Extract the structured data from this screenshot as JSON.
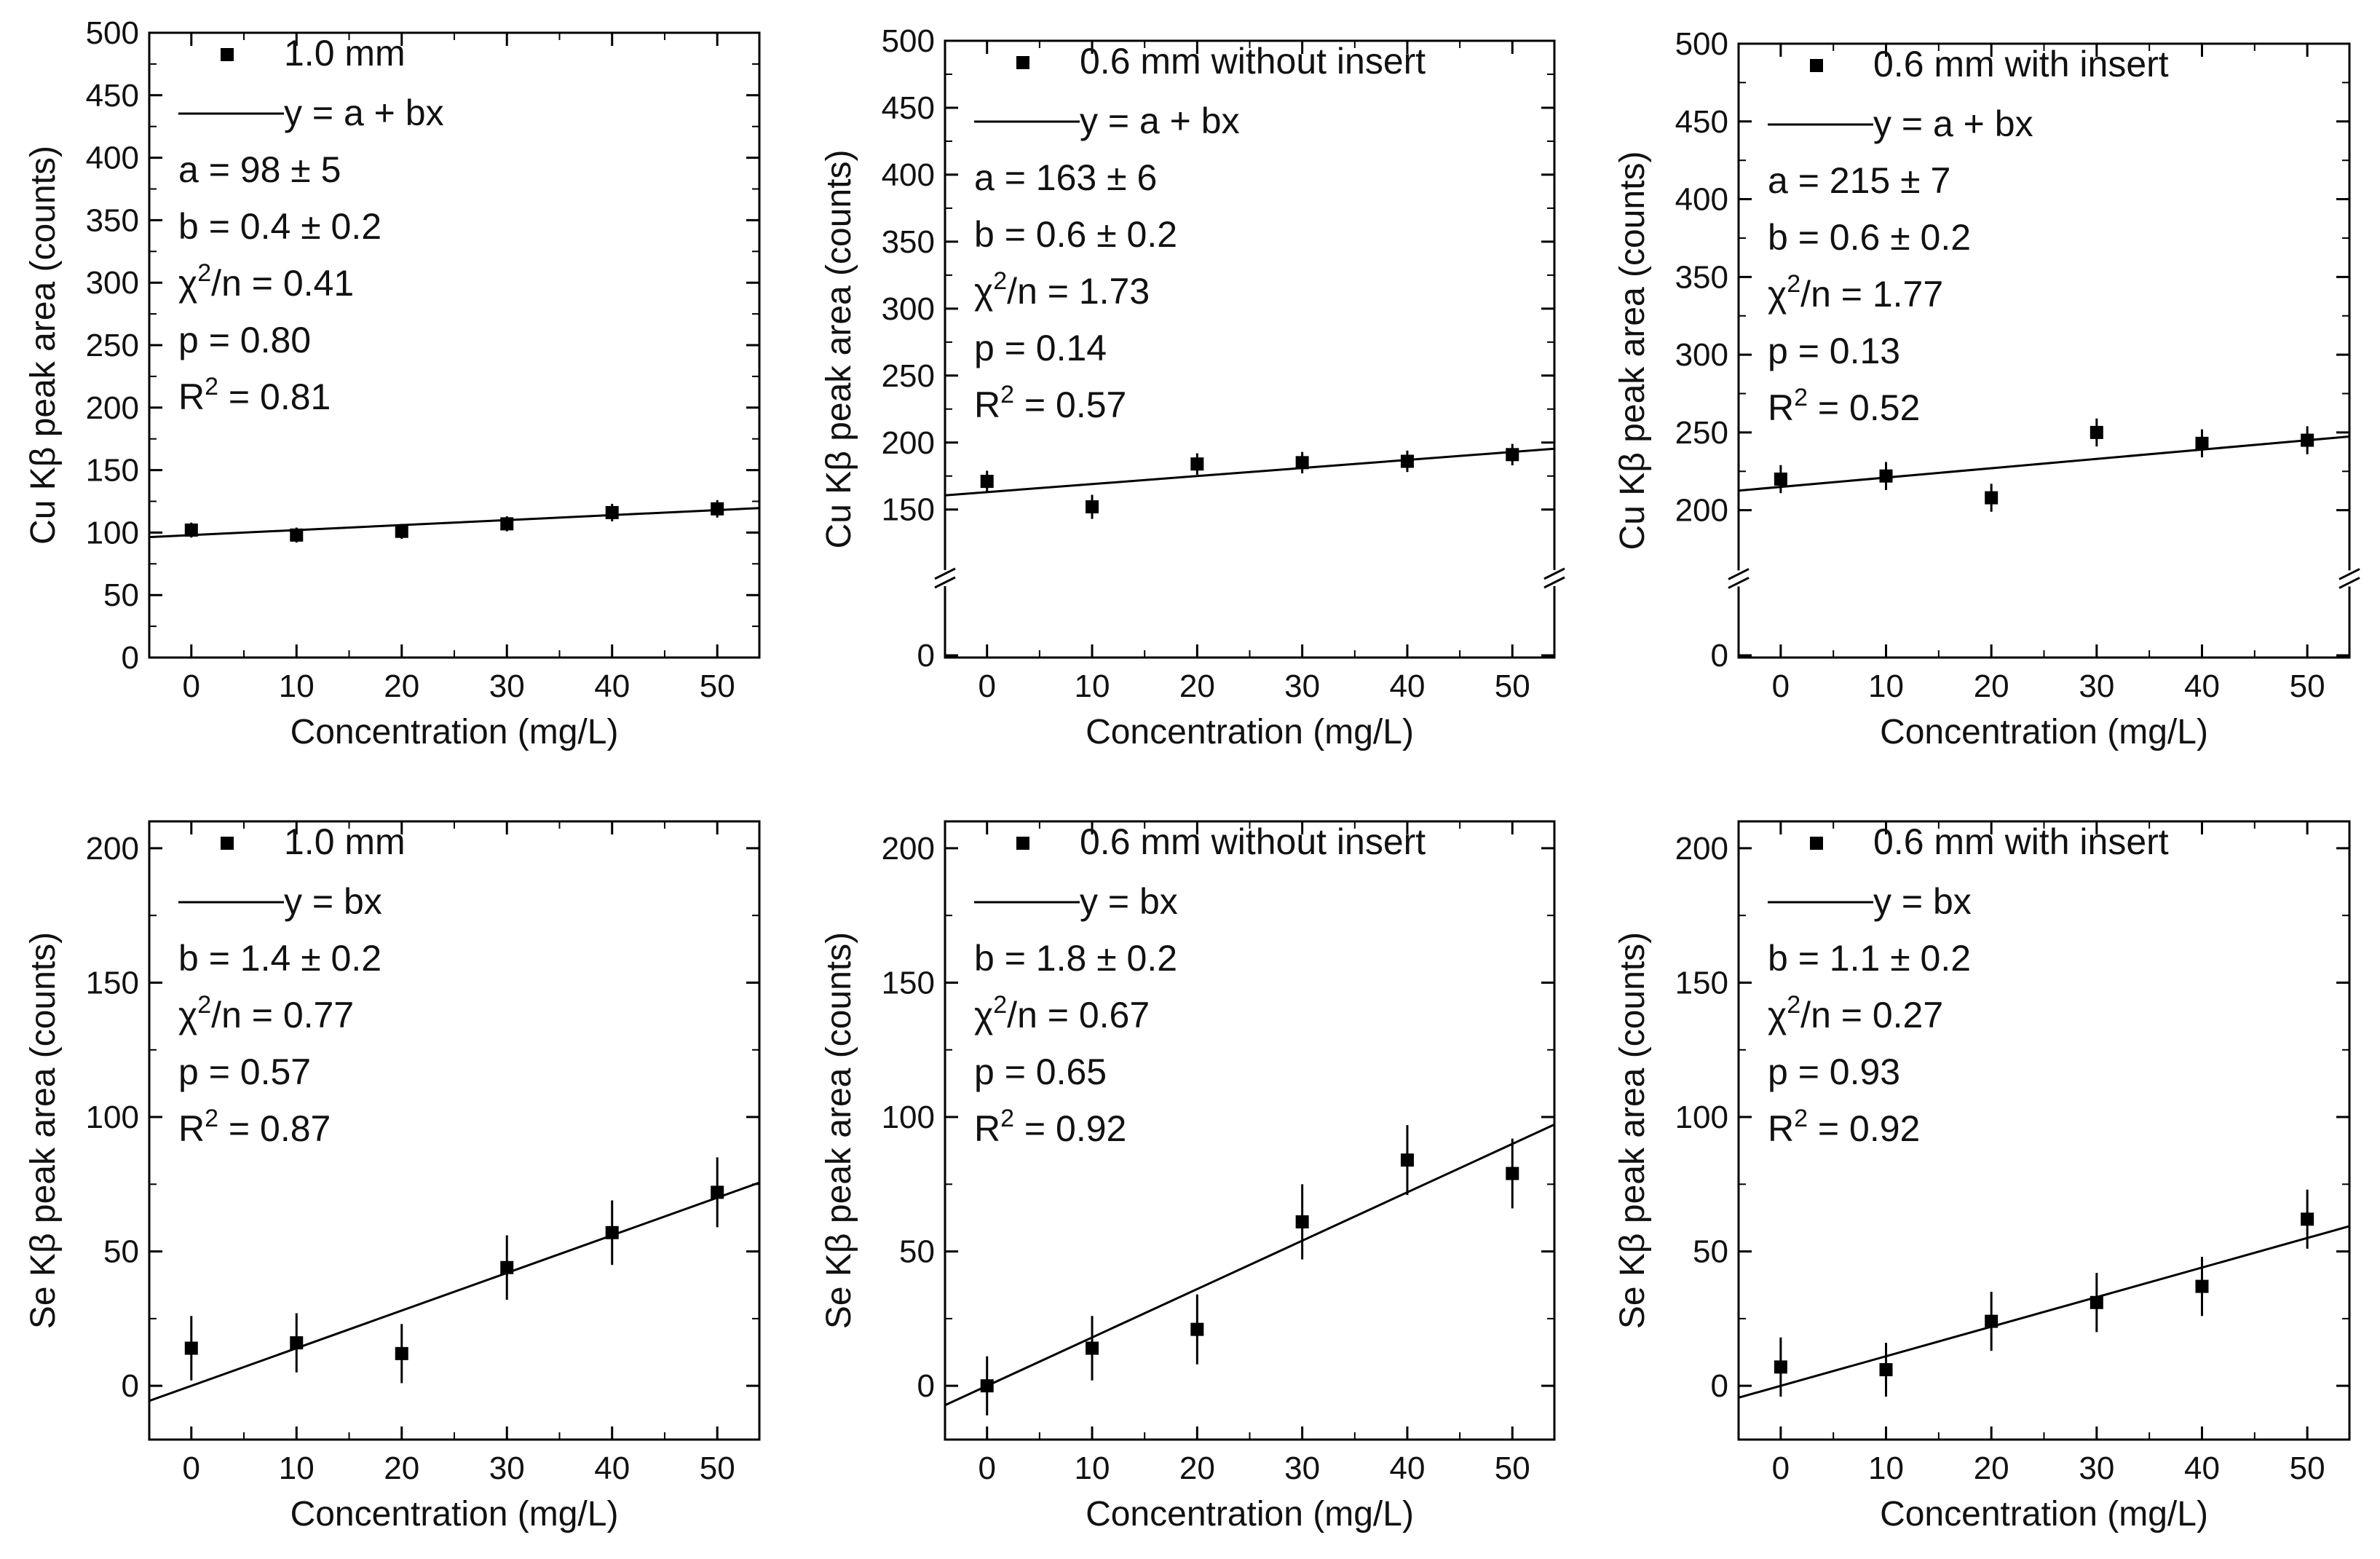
{
  "chart_data": [
    {
      "type": "scatter",
      "title": "",
      "xlabel": "Concentration (mg/L)",
      "ylabel": "Cu Kβ peak area (counts)",
      "xlim": [
        -4,
        54
      ],
      "ylim": [
        0,
        500
      ],
      "xticks": [
        0,
        10,
        20,
        30,
        40,
        50
      ],
      "yticks": [
        0,
        50,
        100,
        150,
        200,
        250,
        300,
        350,
        400,
        450,
        500
      ],
      "broken_axis": false,
      "grid": false,
      "legend": "top-left",
      "series": [
        {
          "name": "1.0 mm",
          "x": [
            0,
            10,
            20,
            30,
            40,
            50
          ],
          "y": [
            102,
            98,
            101,
            107,
            116,
            119
          ],
          "err": [
            6,
            6,
            6,
            6,
            7,
            7
          ]
        }
      ],
      "fit": {
        "legend": "y = a + bx",
        "a": 98,
        "b": 0.4
      },
      "annotations": [
        {
          "pre": "a = 98 ± 5"
        },
        {
          "pre": "b = 0.4 ± 0.2"
        },
        {
          "pre": "χ",
          "sup": "2",
          "post": "/n = 0.41"
        },
        {
          "pre": "p = 0.80"
        },
        {
          "pre": "R",
          "sup": "2",
          "post": " = 0.81"
        }
      ]
    },
    {
      "type": "scatter",
      "title": "",
      "xlabel": "Concentration (mg/L)",
      "ylabel": "Cu Kβ peak area (counts)",
      "xlim": [
        -4,
        54
      ],
      "ylim": [
        0,
        500
      ],
      "xticks": [
        0,
        10,
        20,
        30,
        40,
        50
      ],
      "yticks": [
        0,
        150,
        200,
        250,
        300,
        350,
        400,
        450,
        500
      ],
      "broken_axis": true,
      "break_low": 100,
      "grid": false,
      "legend": "top-left",
      "series": [
        {
          "name": "0.6 mm without insert",
          "x": [
            0,
            10,
            20,
            30,
            40,
            50
          ],
          "y": [
            171,
            152,
            184,
            185,
            186,
            191
          ],
          "err": [
            8,
            9,
            8,
            8,
            8,
            8
          ]
        }
      ],
      "fit": {
        "legend": "y = a + bx",
        "a": 163,
        "b": 0.6
      },
      "annotations": [
        {
          "pre": "a = 163 ± 6"
        },
        {
          "pre": "b = 0.6 ± 0.2"
        },
        {
          "pre": "χ",
          "sup": "2",
          "post": "/n = 1.73"
        },
        {
          "pre": "p = 0.14"
        },
        {
          "pre": "R",
          "sup": "2",
          "post": " = 0.57"
        }
      ]
    },
    {
      "type": "scatter",
      "title": "",
      "xlabel": "Concentration (mg/L)",
      "ylabel": "Cu Kβ peak area (counts)",
      "xlim": [
        -4,
        54
      ],
      "ylim": [
        0,
        500
      ],
      "xticks": [
        0,
        10,
        20,
        30,
        40,
        50
      ],
      "yticks": [
        0,
        200,
        250,
        300,
        350,
        400,
        450,
        500
      ],
      "broken_axis": true,
      "break_low": 150,
      "grid": false,
      "legend": "top-left",
      "series": [
        {
          "name": "0.6 mm with insert",
          "x": [
            0,
            10,
            20,
            30,
            40,
            50
          ],
          "y": [
            220,
            222,
            208,
            250,
            243,
            245
          ],
          "err": [
            9,
            9,
            9,
            9,
            9,
            9
          ]
        }
      ],
      "fit": {
        "legend": "y = a + bx",
        "a": 215,
        "b": 0.6
      },
      "annotations": [
        {
          "pre": "a = 215 ± 7"
        },
        {
          "pre": "b = 0.6 ± 0.2"
        },
        {
          "pre": "χ",
          "sup": "2",
          "post": "/n = 1.77"
        },
        {
          "pre": "p = 0.13"
        },
        {
          "pre": "R",
          "sup": "2",
          "post": " = 0.52"
        }
      ]
    },
    {
      "type": "scatter",
      "title": "",
      "xlabel": "Concentration (mg/L)",
      "ylabel": "Se Kβ peak area (counts)",
      "xlim": [
        -4,
        54
      ],
      "ylim": [
        -20,
        210
      ],
      "xticks": [
        0,
        10,
        20,
        30,
        40,
        50
      ],
      "yticks": [
        0,
        50,
        100,
        150,
        200
      ],
      "broken_axis": false,
      "grid": false,
      "legend": "top-left",
      "series": [
        {
          "name": "1.0 mm",
          "x": [
            0,
            10,
            20,
            30,
            40,
            50
          ],
          "y": [
            14,
            16,
            12,
            44,
            57,
            72
          ],
          "err": [
            12,
            11,
            11,
            12,
            12,
            13
          ]
        }
      ],
      "fit": {
        "legend": "y = bx",
        "a": 0,
        "b": 1.4
      },
      "annotations": [
        {
          "pre": "b = 1.4 ± 0.2"
        },
        {
          "pre": "χ",
          "sup": "2",
          "post": "/n = 0.77"
        },
        {
          "pre": "p = 0.57"
        },
        {
          "pre": "R",
          "sup": "2",
          "post": " = 0.87"
        }
      ]
    },
    {
      "type": "scatter",
      "title": "",
      "xlabel": "Concentration (mg/L)",
      "ylabel": "Se Kβ peak area (counts)",
      "xlim": [
        -4,
        54
      ],
      "ylim": [
        -20,
        210
      ],
      "xticks": [
        0,
        10,
        20,
        30,
        40,
        50
      ],
      "yticks": [
        0,
        50,
        100,
        150,
        200
      ],
      "broken_axis": false,
      "grid": false,
      "legend": "top-left",
      "series": [
        {
          "name": "0.6 mm without insert",
          "x": [
            0,
            10,
            20,
            30,
            40,
            50
          ],
          "y": [
            0,
            14,
            21,
            61,
            84,
            79
          ],
          "err": [
            11,
            12,
            13,
            14,
            13,
            13
          ]
        }
      ],
      "fit": {
        "legend": "y = bx",
        "a": 0,
        "b": 1.8
      },
      "annotations": [
        {
          "pre": "b = 1.8 ± 0.2"
        },
        {
          "pre": "χ",
          "sup": "2",
          "post": "/n = 0.67"
        },
        {
          "pre": "p = 0.65"
        },
        {
          "pre": "R",
          "sup": "2",
          "post": " = 0.92"
        }
      ]
    },
    {
      "type": "scatter",
      "title": "",
      "xlabel": "Concentration (mg/L)",
      "ylabel": "Se Kβ peak area (counts)",
      "xlim": [
        -4,
        54
      ],
      "ylim": [
        -20,
        210
      ],
      "xticks": [
        0,
        10,
        20,
        30,
        40,
        50
      ],
      "yticks": [
        0,
        50,
        100,
        150,
        200
      ],
      "broken_axis": false,
      "grid": false,
      "legend": "top-left",
      "series": [
        {
          "name": "0.6 mm with insert",
          "x": [
            0,
            10,
            20,
            30,
            40,
            50
          ],
          "y": [
            7,
            6,
            24,
            31,
            37,
            62
          ],
          "err": [
            11,
            10,
            11,
            11,
            11,
            11
          ]
        }
      ],
      "fit": {
        "legend": "y = bx",
        "a": 0,
        "b": 1.1
      },
      "annotations": [
        {
          "pre": "b = 1.1 ± 0.2"
        },
        {
          "pre": "χ",
          "sup": "2",
          "post": "/n = 0.27"
        },
        {
          "pre": "p = 0.93"
        },
        {
          "pre": "R",
          "sup": "2",
          "post": " = 0.92"
        }
      ]
    }
  ]
}
